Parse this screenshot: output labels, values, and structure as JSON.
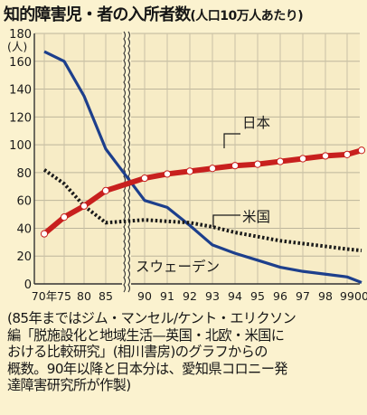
{
  "title": "知的障害児・者の入所者数",
  "title_note": "(人口10万人あたり)",
  "chart_data": {
    "type": "line",
    "title": "知的障害児・者の入所者数(人口10万人あたり)",
    "ylabel": "(人)",
    "ylim": [
      0,
      180
    ],
    "yticks": [
      "0",
      "20",
      "40",
      "60",
      "80",
      "100",
      "120",
      "140",
      "160",
      "180"
    ],
    "x": [
      "70",
      "75",
      "80",
      "85",
      "90",
      "91",
      "92",
      "93",
      "94",
      "95",
      "96",
      "97",
      "98",
      "99",
      "00"
    ],
    "x_tick_labels": [
      "70年",
      "75",
      "80",
      "85",
      "90",
      "91",
      "92",
      "93",
      "94",
      "95",
      "96",
      "97",
      "98",
      "99",
      "00"
    ],
    "axis_break": "85〜90",
    "grid": true,
    "series": [
      {
        "name": "日本",
        "color": "#c8201e",
        "x": [
          "70",
          "75",
          "80",
          "85",
          "90",
          "91",
          "92",
          "93",
          "94",
          "95",
          "96",
          "97",
          "98",
          "99",
          "00"
        ],
        "values": [
          36,
          48,
          56,
          67,
          76,
          79,
          81,
          83,
          85,
          86,
          88,
          90,
          92,
          93,
          96
        ]
      },
      {
        "name": "米国",
        "color": "#1a1a1a",
        "x": [
          "70",
          "75",
          "80",
          "85",
          "90",
          "91",
          "92",
          "93",
          "94",
          "95",
          "96",
          "97",
          "98",
          "99",
          "00"
        ],
        "values": [
          82,
          72,
          56,
          44,
          46,
          45,
          44,
          41,
          37,
          34,
          31,
          29,
          27,
          25,
          24
        ]
      },
      {
        "name": "スウェーデン",
        "color": "#1d3f8c",
        "x": [
          "70",
          "75",
          "80",
          "85",
          "90",
          "91",
          "92",
          "93",
          "94",
          "95",
          "96",
          "97",
          "98",
          "99",
          "00"
        ],
        "values": [
          167,
          160,
          135,
          97,
          60,
          55,
          42,
          28,
          22,
          17,
          12,
          9,
          7,
          5,
          1
        ]
      }
    ]
  },
  "caption": [
    "(85年まではジム・マンセル/ケント・エリクソン",
    "編「脱施設化と地域生活—英国・北欧・米国に",
    "おける比較研究」(相川書房)のグラフからの",
    "概数。90年以降と日本分は、愛知県コロニー発",
    "達障害研究所が作製)"
  ]
}
